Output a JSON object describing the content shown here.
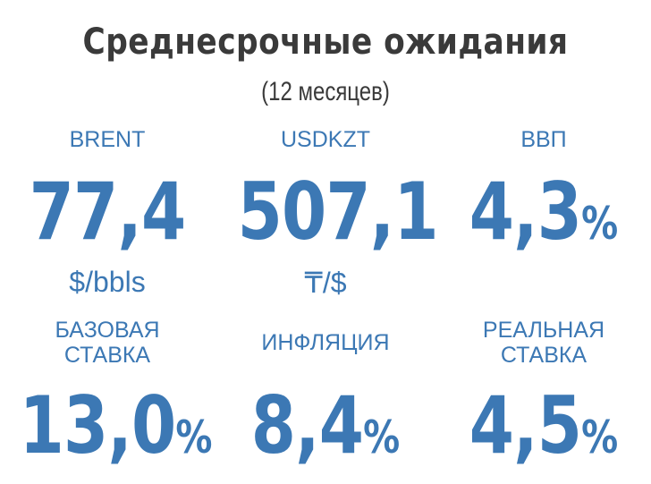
{
  "title": "Среднесрочные ожидания",
  "subtitle": "(12 месяцев)",
  "row1": [
    {
      "label": "BRENT",
      "value": "77,4",
      "unit": "$/bbls",
      "suffix": ""
    },
    {
      "label": "USDKZT",
      "value": "507,1",
      "unit": "₸/$",
      "suffix": ""
    },
    {
      "label": "ВВП",
      "value": "4,3",
      "unit": "",
      "suffix": "%"
    }
  ],
  "row2": [
    {
      "label_line1": "БАЗОВАЯ",
      "label_line2": "СТАВКА",
      "value": "13,0",
      "suffix": "%"
    },
    {
      "label_line1": "ИНФЛЯЦИЯ",
      "label_line2": "",
      "value": "8,4",
      "suffix": "%"
    },
    {
      "label_line1": "РЕАЛЬНАЯ",
      "label_line2": "СТАВКА",
      "value": "4,5",
      "suffix": "%"
    }
  ],
  "colors": {
    "accent": "#3c78b4",
    "title": "#3a3a3a"
  }
}
